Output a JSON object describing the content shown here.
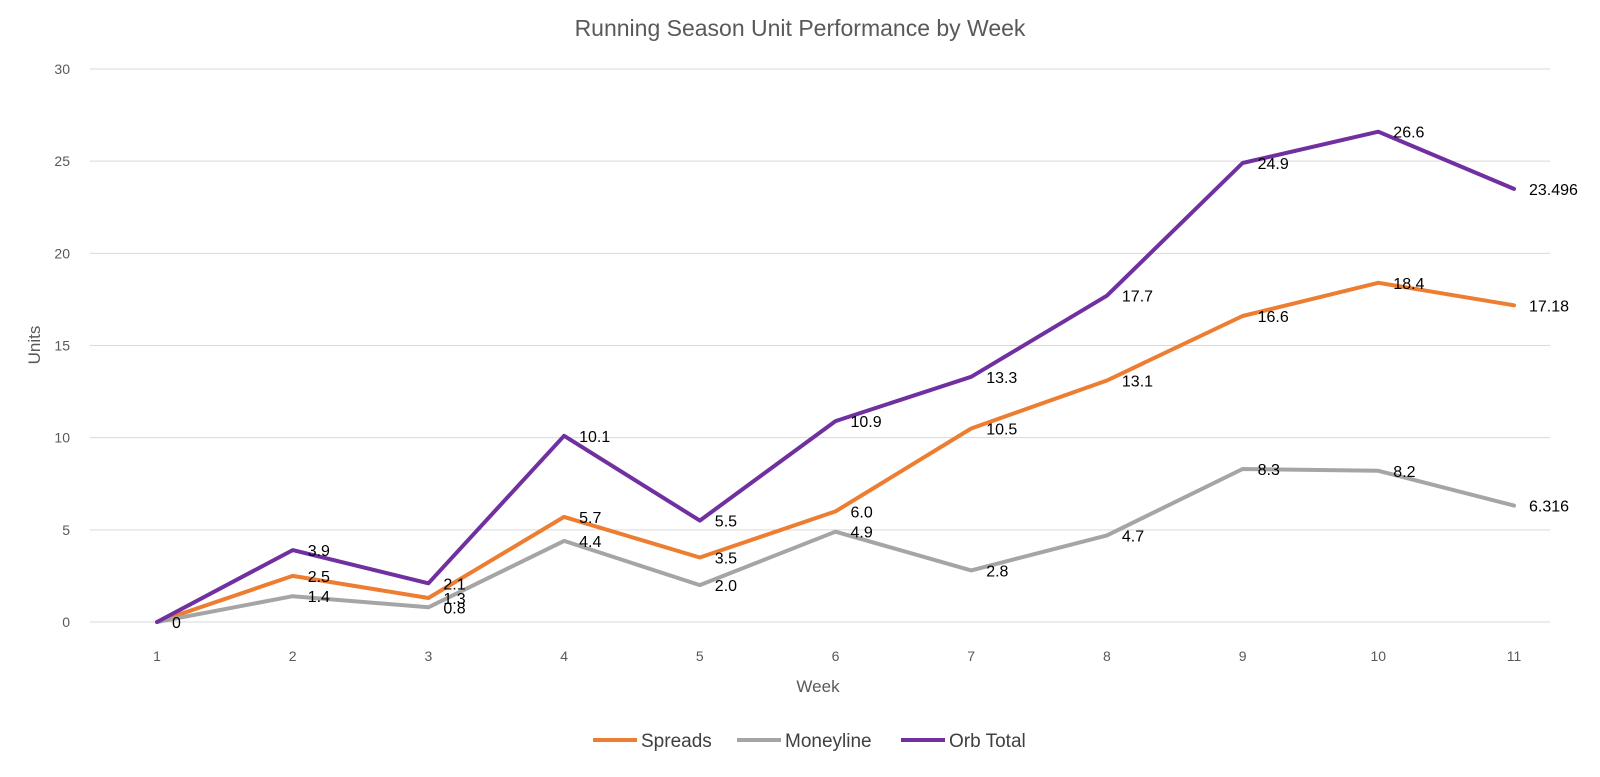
{
  "chart_data": {
    "type": "line",
    "title": "Running Season Unit Performance by Week",
    "xlabel": "Week",
    "ylabel": "Units",
    "categories": [
      "1",
      "2",
      "3",
      "4",
      "5",
      "6",
      "7",
      "8",
      "9",
      "10",
      "11"
    ],
    "ylim": [
      0,
      30
    ],
    "yticks": [
      "0",
      "5",
      "10",
      "15",
      "20",
      "25",
      "30"
    ],
    "grid": true,
    "legend_position": "bottom",
    "series": [
      {
        "name": "Spreads",
        "color": "#ED7D31",
        "values": [
          0,
          2.5,
          1.3,
          5.7,
          3.5,
          6.0,
          10.5,
          13.1,
          16.6,
          18.4,
          17.18
        ],
        "labels": [
          "",
          "2.5",
          "1.3",
          "5.7",
          "3.5",
          "6.0",
          "10.5",
          "13.1",
          "16.6",
          "18.4",
          "17.18"
        ]
      },
      {
        "name": "Moneyline",
        "color": "#A5A5A5",
        "values": [
          0,
          1.4,
          0.8,
          4.4,
          2.0,
          4.9,
          2.8,
          4.7,
          8.3,
          8.2,
          6.316
        ],
        "labels": [
          "",
          "1.4",
          "0.8",
          "4.4",
          "2.0",
          "4.9",
          "2.8",
          "4.7",
          "8.3",
          "8.2",
          "6.316"
        ]
      },
      {
        "name": "Orb Total",
        "color": "#7030A0",
        "values": [
          0,
          3.9,
          2.1,
          10.1,
          5.5,
          10.9,
          13.3,
          17.7,
          24.9,
          26.6,
          23.496
        ],
        "labels": [
          "0",
          "3.9",
          "2.1",
          "10.1",
          "5.5",
          "10.9",
          "13.3",
          "17.7",
          "24.9",
          "26.6",
          "23.496"
        ]
      }
    ]
  }
}
